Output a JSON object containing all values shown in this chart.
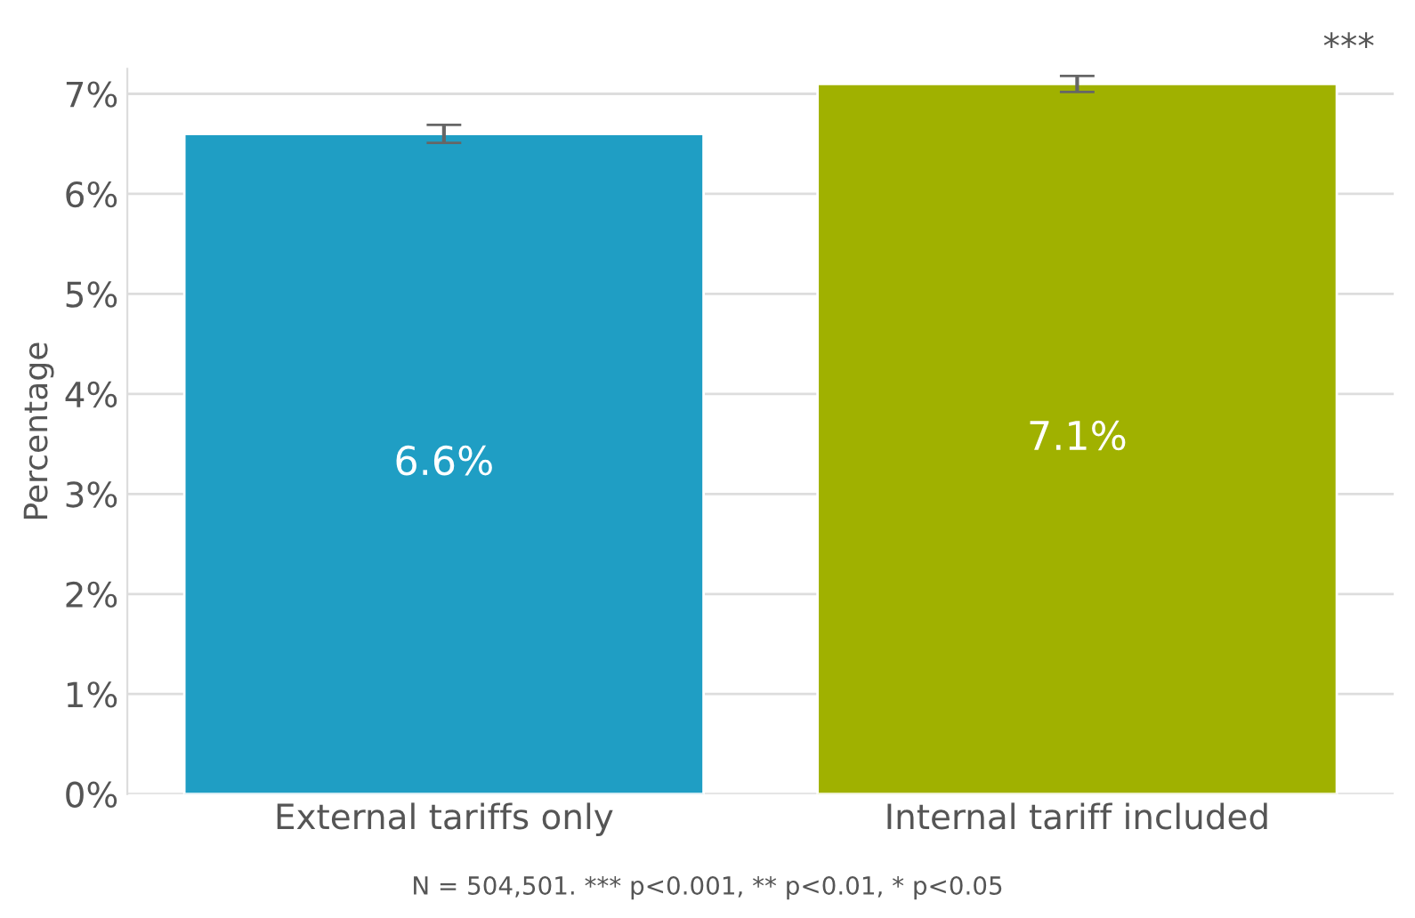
{
  "chart_data": {
    "type": "bar",
    "ylabel": "Percentage",
    "categories": [
      "External tariffs only",
      "Internal tariff included"
    ],
    "values": [
      6.6,
      7.1
    ],
    "colors": [
      "#1f9ec4",
      "#a0b100"
    ],
    "errors": [
      0.09,
      0.08
    ],
    "data_labels": true,
    "value_labels": [
      "6.6%",
      "7.1%"
    ],
    "ylim": [
      0,
      7.25
    ],
    "yticks": [
      {
        "value": 0,
        "label": "0%"
      },
      {
        "value": 1,
        "label": "1%"
      },
      {
        "value": 2,
        "label": "2%"
      },
      {
        "value": 3,
        "label": "3%"
      },
      {
        "value": 4,
        "label": "4%"
      },
      {
        "value": 5,
        "label": "5%"
      },
      {
        "value": 6,
        "label": "6%"
      },
      {
        "value": 7,
        "label": "7%"
      }
    ],
    "grid": "y",
    "annotations": [
      "***",
      "N = 504,501. *** p<0.001, ** p<0.01, * p<0.05"
    ]
  }
}
